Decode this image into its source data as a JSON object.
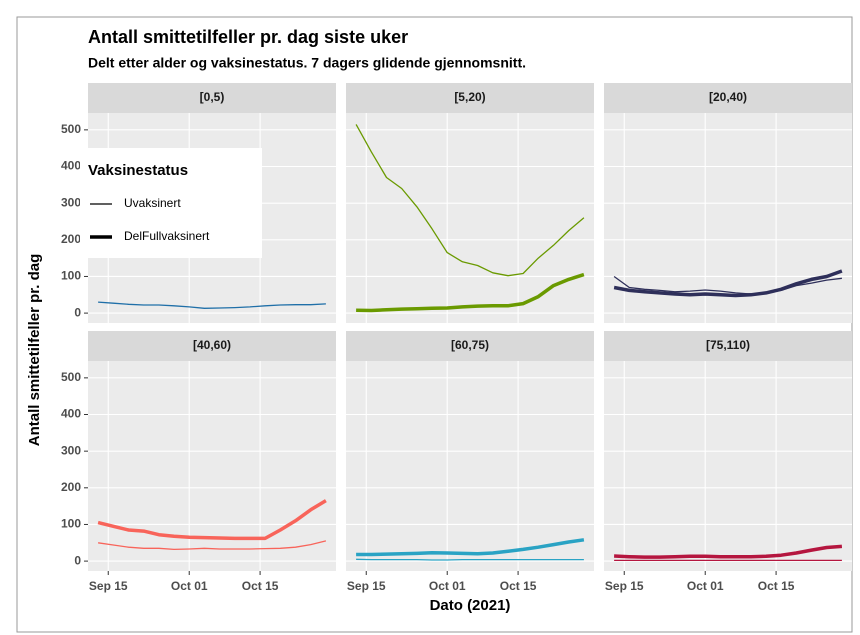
{
  "chart_data": {
    "title": "Antall smittetilfeller pr. dag siste uker",
    "subtitle": "Delt etter alder og vaksinestatus. 7 dagers glidende gjennomsnitt.",
    "xlabel": "Dato (2021)",
    "ylabel": "Antall smittetilfeller pr. dag",
    "legend_title": "Vaksinestatus",
    "grid": true,
    "panels": [
      {
        "type": "line",
        "title": "[0,5)",
        "x": [
          "2021-09-13",
          "2021-09-16",
          "2021-09-19",
          "2021-09-22",
          "2021-09-25",
          "2021-09-28",
          "2021-10-01",
          "2021-10-04",
          "2021-10-07",
          "2021-10-10",
          "2021-10-13",
          "2021-10-16",
          "2021-10-19",
          "2021-10-22",
          "2021-10-25",
          "2021-10-28"
        ],
        "series": [
          {
            "name": "Uvaksinert",
            "color": "#1f6fa8",
            "values": [
              30,
              27,
              24,
              22,
              22,
              20,
              17,
              13,
              14,
              15,
              17,
              20,
              22,
              23,
              23,
              25
            ]
          }
        ],
        "xlim": [
          "2021-09-11",
          "2021-10-30"
        ],
        "xticks": [
          {
            "value": "2021-09-15",
            "label": "Sep 15"
          },
          {
            "value": "2021-10-01",
            "label": "Oct 01"
          },
          {
            "value": "2021-10-15",
            "label": "Oct 15"
          }
        ],
        "ylim": [
          -27,
          546
        ],
        "yticks": [
          0,
          100,
          200,
          300,
          400,
          500
        ]
      },
      {
        "type": "line",
        "title": "[5,20)",
        "x": [
          "2021-09-13",
          "2021-09-16",
          "2021-09-19",
          "2021-09-22",
          "2021-09-25",
          "2021-09-28",
          "2021-10-01",
          "2021-10-04",
          "2021-10-07",
          "2021-10-10",
          "2021-10-13",
          "2021-10-16",
          "2021-10-19",
          "2021-10-22",
          "2021-10-25",
          "2021-10-28"
        ],
        "series": [
          {
            "name": "Uvaksinert",
            "color": "#6a9a00",
            "values": [
              515,
              440,
              370,
              340,
              290,
              230,
              165,
              140,
              130,
              110,
              102,
              108,
              150,
              185,
              225,
              260
            ]
          },
          {
            "name": "DelFullvaksinert",
            "color": "#6a9a00",
            "values": [
              8,
              7,
              9,
              11,
              12,
              13,
              14,
              17,
              19,
              20,
              20,
              26,
              45,
              75,
              92,
              105
            ]
          }
        ],
        "xlim": [
          "2021-09-11",
          "2021-10-30"
        ],
        "xticks": [
          {
            "value": "2021-09-15",
            "label": "Sep 15"
          },
          {
            "value": "2021-10-01",
            "label": "Oct 01"
          },
          {
            "value": "2021-10-15",
            "label": "Oct 15"
          }
        ],
        "ylim": [
          -27,
          546
        ],
        "yticks": [
          0,
          100,
          200,
          300,
          400,
          500
        ]
      },
      {
        "type": "line",
        "title": "[20,40)",
        "x": [
          "2021-09-13",
          "2021-09-16",
          "2021-09-19",
          "2021-09-22",
          "2021-09-25",
          "2021-09-28",
          "2021-10-01",
          "2021-10-04",
          "2021-10-07",
          "2021-10-10",
          "2021-10-13",
          "2021-10-16",
          "2021-10-19",
          "2021-10-22",
          "2021-10-25",
          "2021-10-28"
        ],
        "series": [
          {
            "name": "Uvaksinert",
            "color": "#2e2f5a",
            "values": [
              100,
              70,
              65,
              62,
              58,
              60,
              63,
              60,
              55,
              52,
              55,
              62,
              75,
              82,
              90,
              95
            ]
          },
          {
            "name": "DelFullvaksinert",
            "color": "#2e2f5a",
            "values": [
              70,
              62,
              58,
              55,
              52,
              50,
              52,
              50,
              48,
              50,
              55,
              65,
              80,
              92,
              100,
              115
            ]
          }
        ],
        "xlim": [
          "2021-09-11",
          "2021-10-30"
        ],
        "xticks": [
          {
            "value": "2021-09-15",
            "label": "Sep 15"
          },
          {
            "value": "2021-10-01",
            "label": "Oct 01"
          },
          {
            "value": "2021-10-15",
            "label": "Oct 15"
          }
        ],
        "ylim": [
          -27,
          546
        ],
        "yticks": [
          0,
          100,
          200,
          300,
          400,
          500
        ]
      },
      {
        "type": "line",
        "title": "[40,60)",
        "x": [
          "2021-09-13",
          "2021-09-16",
          "2021-09-19",
          "2021-09-22",
          "2021-09-25",
          "2021-09-28",
          "2021-10-01",
          "2021-10-04",
          "2021-10-07",
          "2021-10-10",
          "2021-10-13",
          "2021-10-16",
          "2021-10-19",
          "2021-10-22",
          "2021-10-25",
          "2021-10-28"
        ],
        "series": [
          {
            "name": "Uvaksinert",
            "color": "#f8645a",
            "values": [
              50,
              44,
              38,
              35,
              35,
              32,
              33,
              35,
              33,
              33,
              33,
              34,
              35,
              38,
              45,
              55
            ]
          },
          {
            "name": "DelFullvaksinert",
            "color": "#f8645a",
            "values": [
              105,
              95,
              85,
              82,
              72,
              68,
              65,
              64,
              63,
              62,
              62,
              62,
              85,
              110,
              140,
              165
            ]
          }
        ],
        "xlim": [
          "2021-09-11",
          "2021-10-30"
        ],
        "xticks": [
          {
            "value": "2021-09-15",
            "label": "Sep 15"
          },
          {
            "value": "2021-10-01",
            "label": "Oct 01"
          },
          {
            "value": "2021-10-15",
            "label": "Oct 15"
          }
        ],
        "ylim": [
          -27,
          546
        ],
        "yticks": [
          0,
          100,
          200,
          300,
          400,
          500
        ]
      },
      {
        "type": "line",
        "title": "[60,75)",
        "x": [
          "2021-09-13",
          "2021-09-16",
          "2021-09-19",
          "2021-09-22",
          "2021-09-25",
          "2021-09-28",
          "2021-10-01",
          "2021-10-04",
          "2021-10-07",
          "2021-10-10",
          "2021-10-13",
          "2021-10-16",
          "2021-10-19",
          "2021-10-22",
          "2021-10-25",
          "2021-10-28"
        ],
        "series": [
          {
            "name": "Uvaksinert",
            "color": "#2aa3c4",
            "values": [
              5,
              4,
              4,
              4,
              4,
              3,
              3,
              4,
              4,
              4,
              4,
              4,
              4,
              4,
              4,
              4
            ]
          },
          {
            "name": "DelFullvaksinert",
            "color": "#2aa3c4",
            "values": [
              18,
              18,
              19,
              20,
              21,
              23,
              22,
              21,
              20,
              22,
              27,
              32,
              38,
              45,
              52,
              58
            ]
          }
        ],
        "xlim": [
          "2021-09-11",
          "2021-10-30"
        ],
        "xticks": [
          {
            "value": "2021-09-15",
            "label": "Sep 15"
          },
          {
            "value": "2021-10-01",
            "label": "Oct 01"
          },
          {
            "value": "2021-10-15",
            "label": "Oct 15"
          }
        ],
        "ylim": [
          -27,
          546
        ],
        "yticks": [
          0,
          100,
          200,
          300,
          400,
          500
        ]
      },
      {
        "type": "line",
        "title": "[75,110)",
        "x": [
          "2021-09-13",
          "2021-09-16",
          "2021-09-19",
          "2021-09-22",
          "2021-09-25",
          "2021-09-28",
          "2021-10-01",
          "2021-10-04",
          "2021-10-07",
          "2021-10-10",
          "2021-10-13",
          "2021-10-16",
          "2021-10-19",
          "2021-10-22",
          "2021-10-25",
          "2021-10-28"
        ],
        "series": [
          {
            "name": "Uvaksinert",
            "color": "#b5163f",
            "values": [
              2,
              2,
              2,
              2,
              2,
              2,
              2,
              2,
              2,
              2,
              2,
              2,
              2,
              2,
              2,
              2
            ]
          },
          {
            "name": "DelFullvaksinert",
            "color": "#b5163f",
            "values": [
              14,
              12,
              11,
              11,
              12,
              13,
              13,
              12,
              12,
              12,
              13,
              16,
              22,
              30,
              37,
              40
            ]
          }
        ],
        "xlim": [
          "2021-09-11",
          "2021-10-30"
        ],
        "xticks": [
          {
            "value": "2021-09-15",
            "label": "Sep 15"
          },
          {
            "value": "2021-10-01",
            "label": "Oct 01"
          },
          {
            "value": "2021-10-15",
            "label": "Oct 15"
          }
        ],
        "ylim": [
          -27,
          546
        ],
        "yticks": [
          0,
          100,
          200,
          300,
          400,
          500
        ]
      }
    ]
  }
}
